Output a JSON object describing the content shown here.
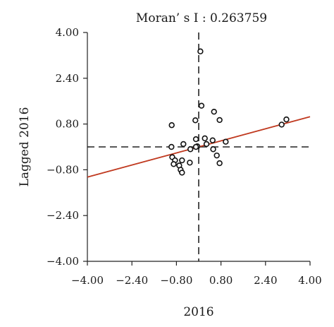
{
  "chart_data": {
    "type": "scatter",
    "title": "Moran’ s I : 0.263759",
    "xlabel": "2016",
    "ylabel": "Lagged 2016",
    "xlim": [
      -4.0,
      4.0
    ],
    "ylim": [
      -4.0,
      4.0
    ],
    "xticks": [
      -4.0,
      -2.4,
      -0.8,
      0.8,
      2.4,
      4.0
    ],
    "yticks": [
      -4.0,
      -2.4,
      -0.8,
      0.8,
      2.4,
      4.0
    ],
    "xtick_labels": [
      "−4.00",
      "−2.40",
      "−0.80",
      "0.80",
      "2.40",
      "4.00"
    ],
    "ytick_labels": [
      "−4.00",
      "−2.40",
      "−0.80",
      "0.80",
      "2.40",
      "4.00"
    ],
    "grid": false,
    "reference_lines": {
      "x": 0.0,
      "y": 0.0,
      "style": "dashed"
    },
    "fit_line": {
      "slope": 0.263759,
      "intercept": 0.0,
      "color": "#c0391f"
    },
    "points": [
      {
        "x": 0.06,
        "y": 3.34
      },
      {
        "x": 0.1,
        "y": 1.44
      },
      {
        "x": 0.55,
        "y": 1.23
      },
      {
        "x": -0.12,
        "y": 0.93
      },
      {
        "x": 0.75,
        "y": 0.94
      },
      {
        "x": -0.97,
        "y": 0.76
      },
      {
        "x": 0.22,
        "y": 0.3
      },
      {
        "x": -0.1,
        "y": 0.27
      },
      {
        "x": 0.5,
        "y": 0.23
      },
      {
        "x": 0.97,
        "y": 0.18
      },
      {
        "x": -0.55,
        "y": 0.1
      },
      {
        "x": 0.28,
        "y": 0.1
      },
      {
        "x": -0.05,
        "y": 0.02
      },
      {
        "x": -0.1,
        "y": 0.0
      },
      {
        "x": -0.98,
        "y": 0.0
      },
      {
        "x": -0.3,
        "y": -0.08
      },
      {
        "x": 0.52,
        "y": -0.08
      },
      {
        "x": 0.65,
        "y": -0.3
      },
      {
        "x": -0.95,
        "y": -0.36
      },
      {
        "x": -0.85,
        "y": -0.47
      },
      {
        "x": -0.6,
        "y": -0.47
      },
      {
        "x": -0.32,
        "y": -0.55
      },
      {
        "x": -0.9,
        "y": -0.6
      },
      {
        "x": 0.75,
        "y": -0.57
      },
      {
        "x": -0.7,
        "y": -0.65
      },
      {
        "x": -0.65,
        "y": -0.8
      },
      {
        "x": -0.6,
        "y": -0.9
      },
      {
        "x": 3.15,
        "y": 0.96
      },
      {
        "x": 2.98,
        "y": 0.78
      }
    ]
  }
}
